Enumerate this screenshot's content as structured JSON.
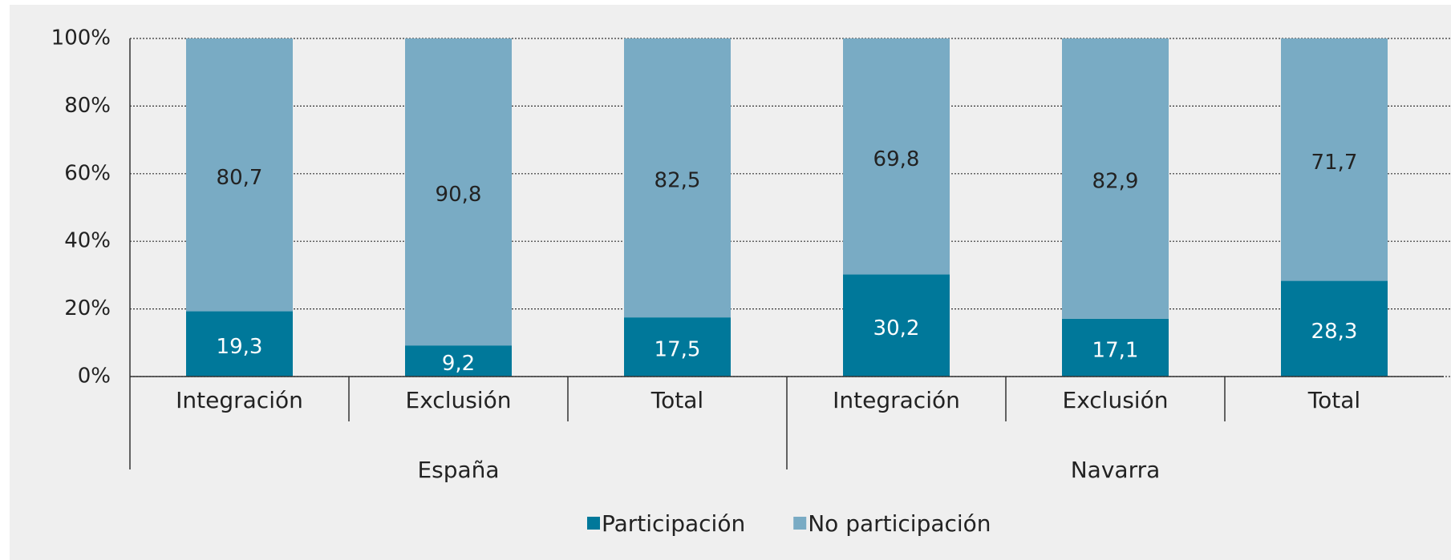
{
  "chart_data": {
    "type": "stacked_bar",
    "groups": [
      {
        "name": "España",
        "categories": [
          "Integración",
          "Exclusión",
          "Total"
        ]
      },
      {
        "name": "Navarra",
        "categories": [
          "Integración",
          "Exclusión",
          "Total"
        ]
      }
    ],
    "series": [
      {
        "name": "Participación",
        "color": "#00789a",
        "values": [
          19.3,
          9.2,
          17.5,
          30.2,
          17.1,
          28.3
        ],
        "value_labels": [
          "19,3",
          "9,2",
          "17,5",
          "30,2",
          "17,1",
          "28,3"
        ]
      },
      {
        "name": "No participación",
        "color": "#79abc4",
        "values": [
          80.7,
          90.8,
          82.5,
          69.8,
          82.9,
          71.7
        ],
        "value_labels": [
          "80,7",
          "90,8",
          "82,5",
          "69,8",
          "82,9",
          "71,7"
        ]
      }
    ],
    "ylim": [
      0,
      100
    ],
    "yticks": [
      {
        "value": 0,
        "label": "0%"
      },
      {
        "value": 20,
        "label": "20%"
      },
      {
        "value": 40,
        "label": "40%"
      },
      {
        "value": 60,
        "label": "60%"
      },
      {
        "value": 80,
        "label": "80%"
      },
      {
        "value": 100,
        "label": "100%"
      }
    ],
    "grid": true,
    "legend": "bottom"
  }
}
